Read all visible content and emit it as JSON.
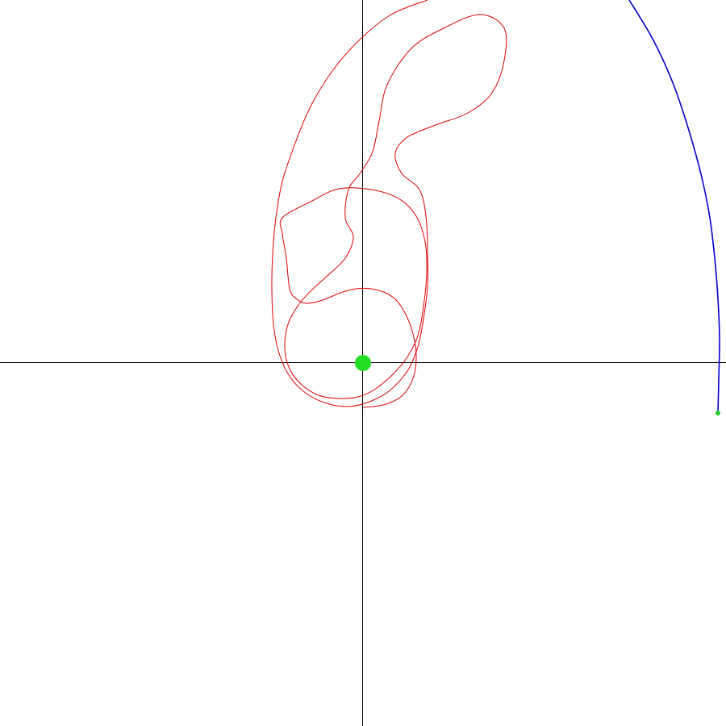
{
  "colors": {
    "background": "#ffffff",
    "axes": "#000000",
    "inner_orbit": "#dd0000",
    "outer_orbit": "#0000cc",
    "central_body": "#22dd22",
    "outer_body": "#22cc22"
  },
  "scene": {
    "axes_visible": true,
    "grid": false,
    "central_body": {
      "x": 0,
      "y": 0
    },
    "outer_body": {
      "x": 440,
      "y": -62
    },
    "inner_orbit_points": [
      [
        0,
        -55
      ],
      [
        25,
        -52
      ],
      [
        48,
        -41
      ],
      [
        62,
        -19
      ],
      [
        66,
        10
      ],
      [
        60,
        43
      ],
      [
        46,
        72
      ],
      [
        30,
        86
      ],
      [
        10,
        92
      ],
      [
        -9,
        92
      ],
      [
        -28,
        87
      ],
      [
        -50,
        78
      ],
      [
        -70,
        74
      ],
      [
        -83,
        80
      ],
      [
        -91,
        92
      ],
      [
        -95,
        130
      ],
      [
        -100,
        160
      ],
      [
        -100,
        180
      ],
      [
        -65,
        200
      ],
      [
        -30,
        216
      ],
      [
        10,
        215
      ],
      [
        44,
        204
      ],
      [
        66,
        182
      ],
      [
        77,
        150
      ],
      [
        79,
        112
      ],
      [
        75,
        70
      ],
      [
        68,
        34
      ],
      [
        54,
        6
      ],
      [
        35,
        -16
      ],
      [
        14,
        -33
      ],
      [
        -6,
        -42
      ],
      [
        -30,
        -44
      ],
      [
        -55,
        -40
      ],
      [
        -77,
        -26
      ],
      [
        -92,
        -5
      ],
      [
        -97,
        20
      ],
      [
        -93,
        48
      ],
      [
        -80,
        72
      ],
      [
        -63,
        91
      ],
      [
        -42,
        110
      ],
      [
        -22,
        130
      ],
      [
        -12,
        156
      ],
      [
        -22,
        180
      ],
      [
        -18,
        215
      ],
      [
        -3,
        236
      ],
      [
        12,
        262
      ],
      [
        20,
        300
      ],
      [
        30,
        345
      ],
      [
        60,
        390
      ],
      [
        100,
        415
      ],
      [
        145,
        432
      ],
      [
        175,
        415
      ],
      [
        175,
        375
      ],
      [
        160,
        335
      ],
      [
        130,
        310
      ],
      [
        90,
        295
      ],
      [
        55,
        280
      ],
      [
        40,
        260
      ],
      [
        48,
        235
      ],
      [
        70,
        215
      ],
      [
        78,
        182
      ],
      [
        80,
        140
      ],
      [
        80,
        95
      ],
      [
        75,
        55
      ],
      [
        68,
        20
      ],
      [
        55,
        -10
      ],
      [
        32,
        -35
      ],
      [
        8,
        -48
      ],
      [
        -18,
        -54
      ],
      [
        -45,
        -50
      ],
      [
        -70,
        -38
      ],
      [
        -90,
        -18
      ],
      [
        -104,
        12
      ],
      [
        -111,
        48
      ],
      [
        -113,
        90
      ],
      [
        -112,
        135
      ],
      [
        -108,
        180
      ],
      [
        -100,
        225
      ],
      [
        -85,
        270
      ],
      [
        -65,
        318
      ],
      [
        -38,
        362
      ],
      [
        -5,
        400
      ],
      [
        35,
        432
      ],
      [
        80,
        450
      ]
    ],
    "outer_orbit_points": [
      [
        330,
        450
      ],
      [
        360,
        400
      ],
      [
        385,
        345
      ],
      [
        405,
        285
      ],
      [
        420,
        230
      ],
      [
        430,
        180
      ],
      [
        436,
        130
      ],
      [
        440,
        80
      ],
      [
        442,
        30
      ],
      [
        441,
        -20
      ],
      [
        440,
        -62
      ]
    ]
  }
}
